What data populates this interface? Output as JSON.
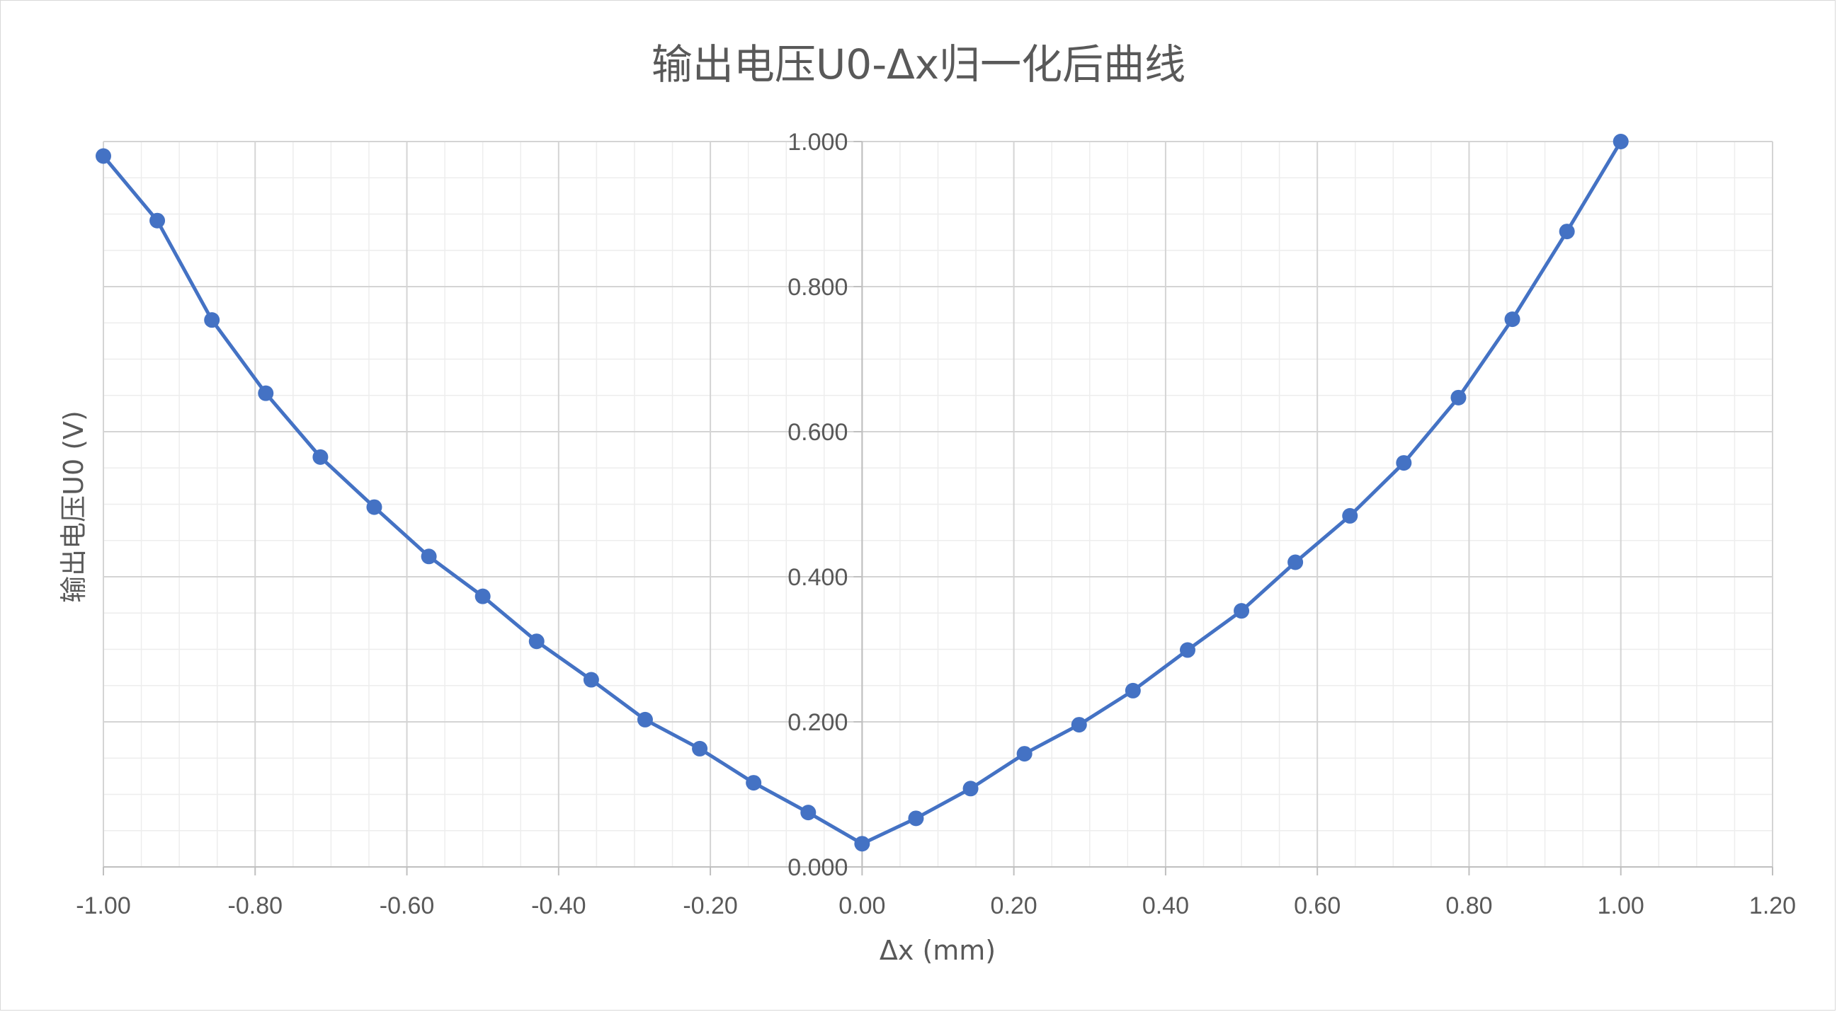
{
  "chart_data": {
    "type": "scatter",
    "title": "输出电压U0-Δx归一化后曲线",
    "xlabel": "Δx (mm)",
    "ylabel": "输出电压U0 (V)",
    "xlim": [
      -1.0,
      1.2
    ],
    "ylim": [
      0.0,
      1.0
    ],
    "x_ticks": [
      "-1.00",
      "-0.80",
      "-0.60",
      "-0.40",
      "-0.20",
      "0.00",
      "0.20",
      "0.40",
      "0.60",
      "0.80",
      "1.00",
      "1.20"
    ],
    "y_ticks": [
      "0.000",
      "0.200",
      "0.400",
      "0.600",
      "0.800",
      "1.000"
    ],
    "major_grid": true,
    "minor_grid": true,
    "markers": true,
    "line_connected": true,
    "color": "#4472c4",
    "series": [
      {
        "x": [
          -1.0,
          -0.929,
          -0.857,
          -0.786,
          -0.714,
          -0.643,
          -0.571,
          -0.5,
          -0.429,
          -0.357,
          -0.286,
          -0.214,
          -0.143,
          -0.071,
          0.0,
          0.071,
          0.143,
          0.214,
          0.286,
          0.357,
          0.429,
          0.5,
          0.571,
          0.643,
          0.714,
          0.786,
          0.857,
          0.929,
          1.0
        ],
        "y": [
          0.98,
          0.891,
          0.754,
          0.653,
          0.565,
          0.496,
          0.428,
          0.373,
          0.311,
          0.258,
          0.203,
          0.163,
          0.116,
          0.075,
          0.032,
          0.067,
          0.108,
          0.156,
          0.196,
          0.243,
          0.299,
          0.353,
          0.42,
          0.484,
          0.557,
          0.647,
          0.755,
          0.876,
          1.0
        ]
      }
    ]
  }
}
